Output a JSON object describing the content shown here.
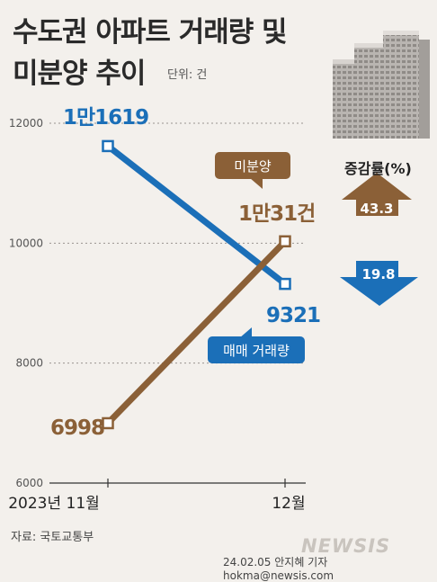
{
  "header": {
    "title_line1": "수도권 아파트 거래량 및",
    "title_line2": "미분양 추이",
    "unit": "단위: 건"
  },
  "chart_data": {
    "type": "line",
    "categories": [
      "2023년 11월",
      "12월"
    ],
    "ylim": [
      6000,
      12000
    ],
    "yticks": [
      6000,
      8000,
      10000,
      12000
    ],
    "series": [
      {
        "name": "매매 거래량",
        "values": [
          11619,
          9321
        ],
        "labels": [
          "1만1619",
          "9321"
        ],
        "color": "#1b6fb8"
      },
      {
        "name": "미분양",
        "values": [
          6998,
          10031
        ],
        "labels": [
          "6998",
          "1만31건"
        ],
        "color": "#8b6037"
      }
    ]
  },
  "change_rate": {
    "title": "증감률(%)",
    "up": {
      "value": "43.3",
      "color": "#8b6037"
    },
    "down": {
      "value": "19.8",
      "color": "#1b6fb8"
    }
  },
  "footer": {
    "source": "자료: 국토교통부",
    "credit": "24.02.05 안지혜 기자 hokma@newsis.com",
    "logo": "NEWSIS"
  }
}
